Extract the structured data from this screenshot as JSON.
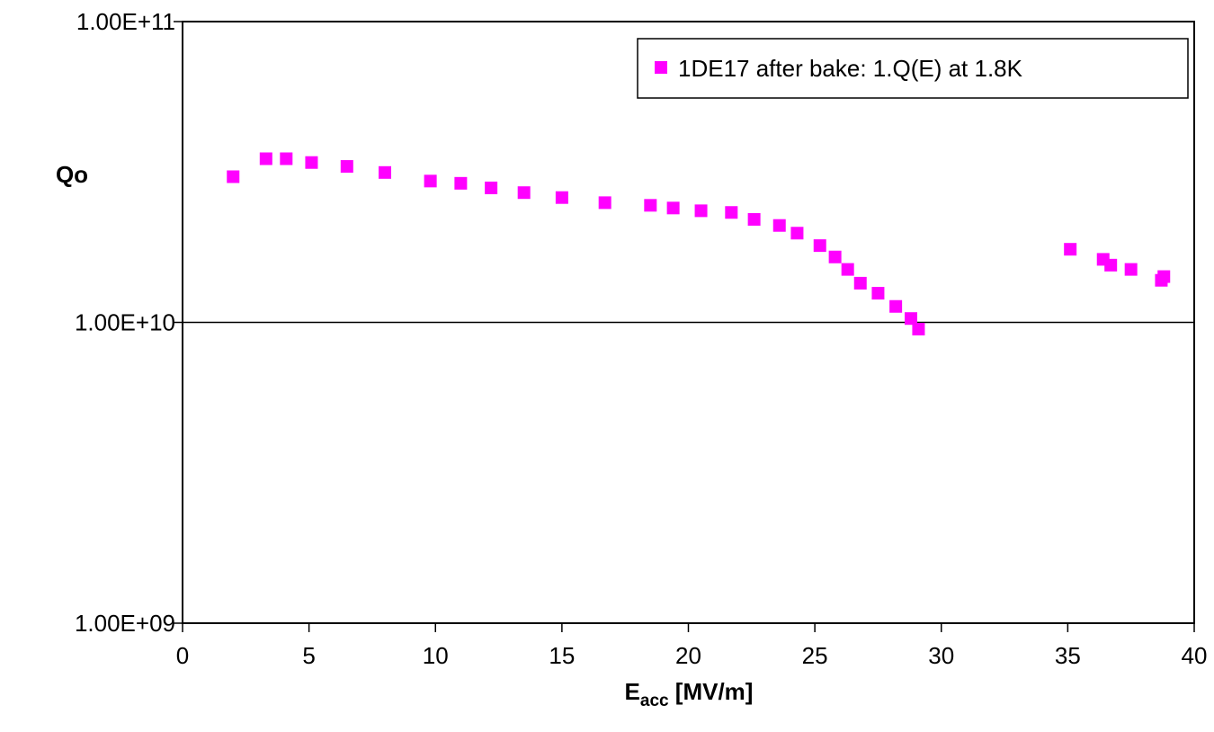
{
  "chart_data": {
    "type": "scatter",
    "xlabel_main": "E",
    "xlabel_sub": "acc",
    "xlabel_rest": " [MV/m]",
    "ylabel": "Qo",
    "xlim": [
      0,
      40
    ],
    "ylim": [
      1000000000.0,
      100000000000.0
    ],
    "yscale": "log",
    "x_ticks": [
      "0",
      "5",
      "10",
      "15",
      "20",
      "25",
      "30",
      "35",
      "40"
    ],
    "y_ticks": [
      "1.00E+11",
      "1.00E+10",
      "1.00E+09"
    ],
    "grid": "horizontal major gridlines",
    "legend_position": "top-right",
    "marker_color": "#ff00ff",
    "series": [
      {
        "name": "1DE17 after bake: 1.Q(E) at 1.8K",
        "marker": "square",
        "x": [
          2.0,
          3.3,
          4.1,
          5.1,
          6.5,
          8.0,
          9.8,
          11.0,
          12.2,
          13.5,
          15.0,
          16.7,
          18.5,
          19.4,
          20.5,
          21.7,
          22.6,
          23.6,
          24.3,
          25.2,
          25.8,
          26.3,
          26.8,
          27.5,
          28.2,
          28.8,
          29.1,
          35.1,
          36.4,
          36.7,
          37.5,
          38.7,
          38.8
        ],
        "y": [
          30500000000.0,
          35000000000.0,
          35000000000.0,
          34000000000.0,
          33000000000.0,
          31500000000.0,
          29500000000.0,
          29000000000.0,
          28000000000.0,
          27000000000.0,
          26000000000.0,
          25000000000.0,
          24500000000.0,
          24000000000.0,
          23500000000.0,
          23200000000.0,
          22000000000.0,
          21000000000.0,
          19800000000.0,
          18000000000.0,
          16500000000.0,
          15000000000.0,
          13500000000.0,
          12500000000.0,
          11300000000.0,
          10300000000.0,
          9500000000.0,
          17500000000.0,
          16200000000.0,
          15500000000.0,
          15000000000.0,
          13800000000.0,
          14200000000.0
        ]
      }
    ]
  }
}
